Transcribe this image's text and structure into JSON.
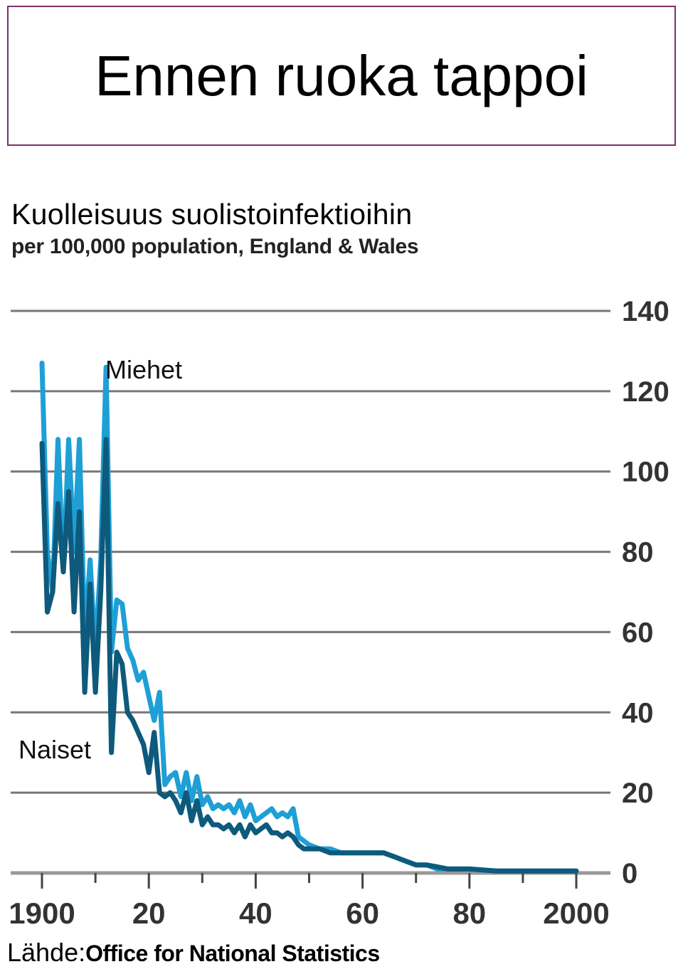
{
  "slide": {
    "title": "Ennen ruoka tappoi",
    "source_label": "Lähde:",
    "source_org": "Office for National Statistics"
  },
  "colors": {
    "title_border": "#7b2f6f",
    "grid": "#777777",
    "men": "#1e9fd6",
    "women": "#0d5a7c"
  },
  "chart_data": {
    "type": "line",
    "title": "Kuolleisuus suolistoinfektioihin",
    "subtitle": "per 100,000 population, England & Wales",
    "x_tick_labels": [
      "1900",
      "20",
      "40",
      "60",
      "80",
      "2000"
    ],
    "x_ticks": [
      1900,
      1920,
      1940,
      1960,
      1980,
      2000
    ],
    "y_ticks": [
      0,
      20,
      40,
      60,
      80,
      100,
      120,
      140
    ],
    "xlim": [
      1890,
      2006
    ],
    "ylim": [
      0,
      140
    ],
    "y_axis_side": "right",
    "grid": true,
    "series": [
      {
        "name": "Miehet",
        "color_key": "men",
        "x": [
          1900,
          1901,
          1902,
          1903,
          1904,
          1905,
          1906,
          1907,
          1908,
          1909,
          1910,
          1911,
          1912,
          1913,
          1914,
          1915,
          1916,
          1917,
          1918,
          1919,
          1920,
          1921,
          1922,
          1923,
          1924,
          1925,
          1926,
          1927,
          1928,
          1929,
          1930,
          1931,
          1932,
          1933,
          1934,
          1935,
          1936,
          1937,
          1938,
          1939,
          1940,
          1941,
          1942,
          1943,
          1944,
          1945,
          1946,
          1947,
          1948,
          1949,
          1950,
          1952,
          1954,
          1956,
          1958,
          1960,
          1962,
          1964,
          1966,
          1968,
          1970,
          1972,
          1974,
          1976,
          1978,
          1980,
          1985,
          1990,
          1995,
          2000
        ],
        "values": [
          127,
          80,
          70,
          108,
          75,
          108,
          80,
          108,
          58,
          78,
          55,
          78,
          126,
          55,
          68,
          67,
          56,
          53,
          48,
          50,
          44,
          38,
          45,
          22,
          24,
          25,
          19,
          25,
          18,
          24,
          17,
          19,
          16,
          17,
          16,
          17,
          15,
          18,
          14,
          17,
          13,
          14,
          15,
          16,
          14,
          15,
          14,
          16,
          9,
          8,
          7,
          6,
          6,
          5,
          5,
          5,
          5,
          5,
          4,
          3,
          2,
          2,
          1,
          1,
          1,
          1,
          0.5,
          0.5,
          0.5,
          0.5
        ]
      },
      {
        "name": "Naiset",
        "color_key": "women",
        "x": [
          1900,
          1901,
          1902,
          1903,
          1904,
          1905,
          1906,
          1907,
          1908,
          1909,
          1910,
          1911,
          1912,
          1913,
          1914,
          1915,
          1916,
          1917,
          1918,
          1919,
          1920,
          1921,
          1922,
          1923,
          1924,
          1925,
          1926,
          1927,
          1928,
          1929,
          1930,
          1931,
          1932,
          1933,
          1934,
          1935,
          1936,
          1937,
          1938,
          1939,
          1940,
          1941,
          1942,
          1943,
          1944,
          1945,
          1946,
          1947,
          1948,
          1949,
          1950,
          1952,
          1954,
          1956,
          1958,
          1960,
          1962,
          1964,
          1966,
          1968,
          1970,
          1972,
          1974,
          1976,
          1978,
          1980,
          1985,
          1990,
          1995,
          2000
        ],
        "values": [
          107,
          65,
          70,
          92,
          75,
          95,
          65,
          90,
          45,
          72,
          45,
          70,
          108,
          30,
          55,
          52,
          40,
          38,
          35,
          32,
          25,
          35,
          20,
          19,
          20,
          18,
          15,
          20,
          13,
          18,
          12,
          14,
          12,
          12,
          11,
          12,
          10,
          12,
          9,
          12,
          10,
          11,
          12,
          10,
          10,
          9,
          10,
          9,
          7,
          6,
          6,
          6,
          5,
          5,
          5,
          5,
          5,
          5,
          4,
          3,
          2,
          2,
          1.5,
          1,
          1,
          1,
          0.5,
          0.5,
          0.5,
          0.5
        ]
      }
    ]
  }
}
